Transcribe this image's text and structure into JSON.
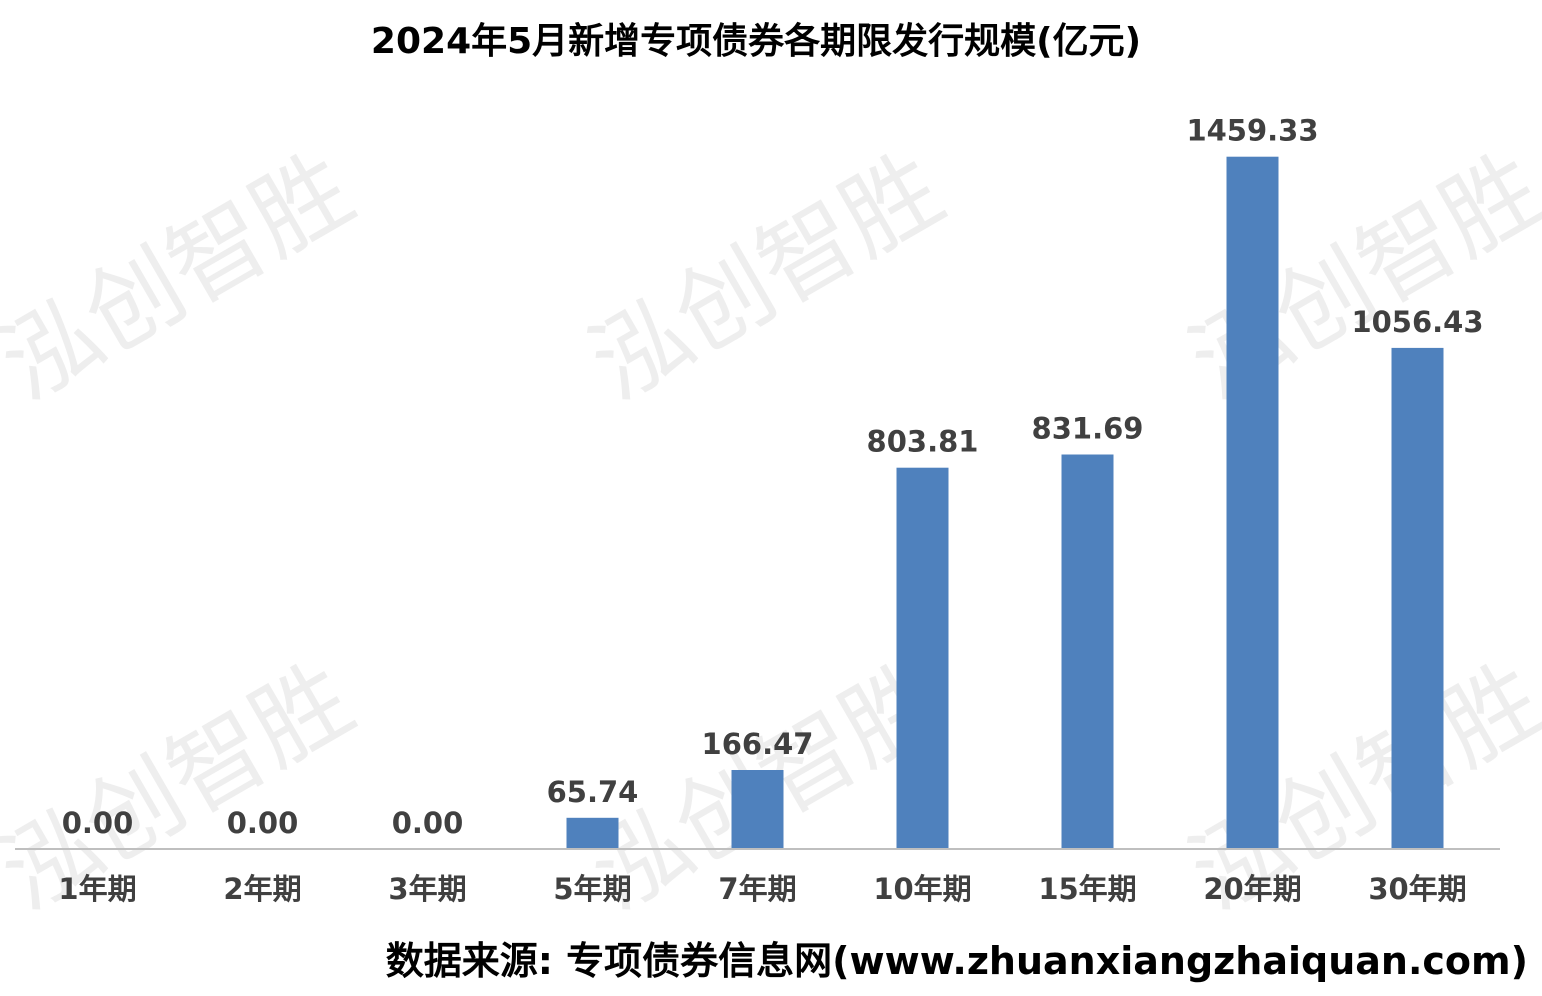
{
  "chart_data": {
    "type": "bar",
    "title": "2024年5月新增专项债券各期限发行规模(亿元)",
    "categories": [
      "1年期",
      "2年期",
      "3年期",
      "5年期",
      "7年期",
      "10年期",
      "15年期",
      "20年期",
      "30年期"
    ],
    "values": [
      0.0,
      0.0,
      0.0,
      65.74,
      166.47,
      803.81,
      831.69,
      1459.33,
      1056.43
    ],
    "value_labels": [
      "0.00",
      "0.00",
      "0.00",
      "65.74",
      "166.47",
      "803.81",
      "831.69",
      "1459.33",
      "1056.43"
    ],
    "xlabel": "",
    "ylabel": "",
    "ylim": [
      0,
      1600
    ],
    "grid": false,
    "y_axis_visible": false,
    "legend": "none",
    "bar_color": "#4f81bd",
    "axis_color": "#bfbfbf",
    "label_color": "#404040"
  },
  "watermark": {
    "text": "泓创智胜",
    "color": "#969696"
  },
  "source": {
    "text": "数据来源: 专项债券信息网(www.zhuanxiangzhaiquan.com)"
  }
}
